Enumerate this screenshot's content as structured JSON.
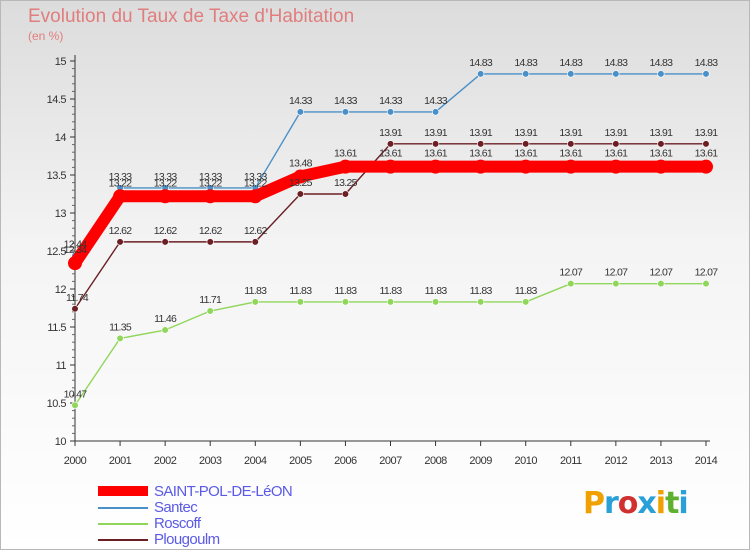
{
  "header": {
    "title": "Evolution du Taux de Taxe d'Habitation",
    "subtitle": "(en %)"
  },
  "chart_data": {
    "type": "line",
    "x": [
      "2000",
      "2001",
      "2002",
      "2003",
      "2004",
      "2005",
      "2006",
      "2007",
      "2008",
      "2009",
      "2010",
      "2011",
      "2012",
      "2013",
      "2014"
    ],
    "ylim": [
      10,
      15
    ],
    "yticks": [
      10,
      10.5,
      11,
      11.5,
      12,
      12.5,
      13,
      13.5,
      14,
      14.5,
      15
    ],
    "ytick_labels": [
      "10",
      "10.5",
      "11",
      "11.5",
      "12",
      "12.5",
      "13",
      "13.5",
      "14",
      "14.5",
      "15"
    ],
    "grid": false,
    "legend_position": "bottom-left",
    "series": [
      {
        "name": "SAINT-POL-DE-LéON",
        "color": "#ff0000",
        "values": [
          12.34,
          13.22,
          13.22,
          13.22,
          13.22,
          13.48,
          13.61,
          13.61,
          13.61,
          13.61,
          13.61,
          13.61,
          13.61,
          13.61,
          13.61
        ],
        "labels": [
          "12.34",
          "13.22",
          "13.22",
          "13.22",
          "13.22",
          "13.48",
          "13.61",
          "13.61",
          "13.61",
          "13.61",
          "13.61",
          "13.61",
          "13.61",
          "13.61",
          "13.61"
        ]
      },
      {
        "name": "Santec",
        "color": "#4a90c8",
        "values": [
          12.44,
          13.33,
          13.33,
          13.33,
          13.33,
          14.33,
          14.33,
          14.33,
          14.33,
          14.83,
          14.83,
          14.83,
          14.83,
          14.83,
          14.83
        ],
        "labels": [
          "12.44",
          "13.33",
          "13.33",
          "13.33",
          "13.33",
          "14.33",
          "14.33",
          "14.33",
          "14.33",
          "14.83",
          "14.83",
          "14.83",
          "14.83",
          "14.83",
          "14.83"
        ]
      },
      {
        "name": "Roscoff",
        "color": "#8fd65a",
        "values": [
          10.47,
          11.35,
          11.46,
          11.71,
          11.83,
          11.83,
          11.83,
          11.83,
          11.83,
          11.83,
          11.83,
          12.07,
          12.07,
          12.07,
          12.07
        ],
        "labels": [
          "10.47",
          "11.35",
          "11.46",
          "11.71",
          "11.83",
          "11.83",
          "11.83",
          "11.83",
          "11.83",
          "11.83",
          "11.83",
          "12.07",
          "12.07",
          "12.07",
          "12.07"
        ]
      },
      {
        "name": "Plougoulm",
        "color": "#6b1f24",
        "values": [
          11.74,
          12.62,
          12.62,
          12.62,
          12.62,
          13.25,
          13.25,
          13.91,
          13.91,
          13.91,
          13.91,
          13.91,
          13.91,
          13.91,
          13.91
        ],
        "labels": [
          "11.74",
          "12.62",
          "12.62",
          "12.62",
          "12.62",
          "13.25",
          "13.25",
          "13.91",
          "13.91",
          "13.91",
          "13.91",
          "13.91",
          "13.91",
          "13.91",
          "13.91"
        ]
      }
    ]
  },
  "legend": {
    "items": [
      {
        "label": "SAINT-POL-DE-LéON",
        "color": "#ff0000"
      },
      {
        "label": "Santec",
        "color": "#4a90c8"
      },
      {
        "label": "Roscoff",
        "color": "#8fd65a"
      },
      {
        "label": "Plougoulm",
        "color": "#6b1f24"
      }
    ]
  },
  "logo": {
    "letters": [
      "P",
      "r",
      "o",
      "x",
      "i",
      "t",
      "i"
    ],
    "colors": [
      "#f0a000",
      "#2aa0d8",
      "#d03030",
      "#2aa0d8",
      "#f0a000",
      "#60b030",
      "#2aa0d8"
    ]
  }
}
